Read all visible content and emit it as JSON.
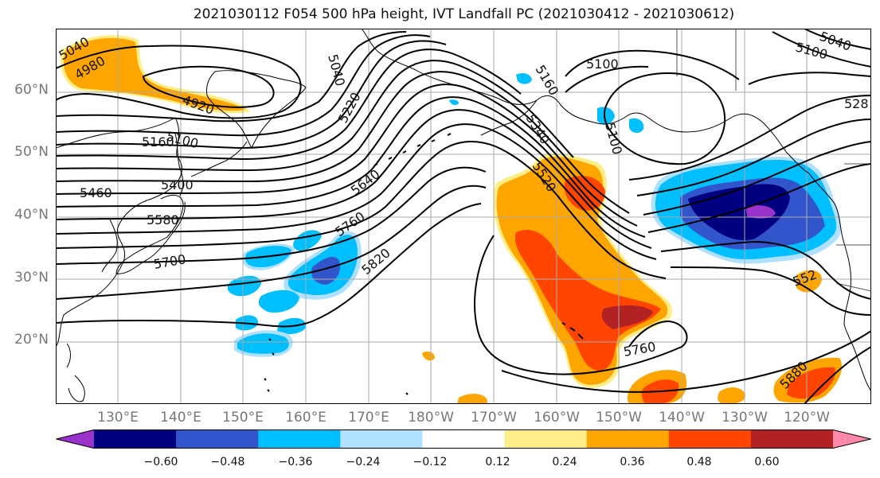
{
  "title": "2021030112 F054 500 hPa height, IVT Landfall PC (2021030412 - 2021030612)",
  "lat_labels": [
    "60°N",
    "50°N",
    "40°N",
    "30°N",
    "20°N"
  ],
  "lon_labels": [
    "130°E",
    "140°E",
    "150°E",
    "160°E",
    "170°E",
    "180°W",
    "170°W",
    "160°W",
    "150°W",
    "140°W",
    "130°W",
    "120°W"
  ],
  "contour_labels": [
    "5040",
    "4980",
    "4920",
    "5100",
    "5160",
    "5460",
    "5400",
    "5580",
    "5700",
    "5220",
    "5040",
    "5640",
    "5760",
    "5820",
    "5160",
    "5340",
    "5520",
    "5100",
    "5100",
    "5760",
    "5040",
    "5100",
    "528",
    "552",
    "5880"
  ],
  "colorbar": {
    "ticks": [
      "−0.60",
      "−0.48",
      "−0.36",
      "−0.24",
      "−0.12",
      "0.12",
      "0.24",
      "0.36",
      "0.48",
      "0.60"
    ],
    "colors": [
      "#9933cc",
      "#000080",
      "#3355cc",
      "#00bfff",
      "#b0e0ff",
      "#ffffff",
      "#ffee88",
      "#ffa500",
      "#ff4500",
      "#b22222",
      "#ff88aa"
    ]
  },
  "colors": {
    "orange": "#ffa500",
    "red_orange": "#ff4500",
    "dark_red": "#b22222",
    "light_yellow": "#ffee88",
    "sky_blue": "#00bfff",
    "light_blue": "#b0e0ff",
    "royal_blue": "#3355cc",
    "navy": "#000080",
    "purple": "#9933cc"
  }
}
